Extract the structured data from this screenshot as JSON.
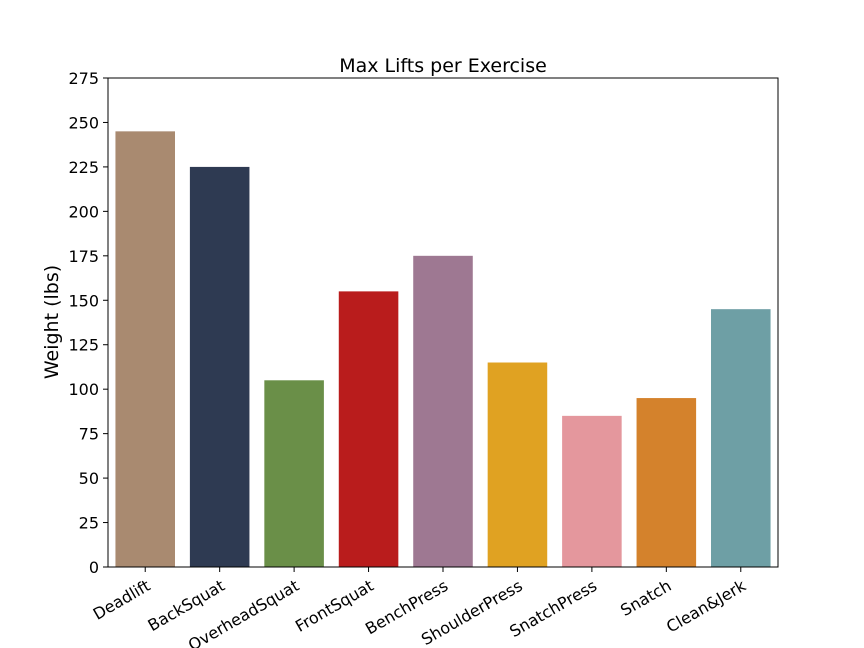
{
  "chart_data": {
    "type": "bar",
    "title": "Max Lifts per Exercise",
    "xlabel": "",
    "ylabel": "Weight (lbs)",
    "ylim": [
      0,
      275
    ],
    "yticks": [
      0,
      25,
      50,
      75,
      100,
      125,
      150,
      175,
      200,
      225,
      250,
      275
    ],
    "grid": false,
    "legend": "none",
    "categories": [
      "Deadlift",
      "BackSquat",
      "OverheadSquat",
      "FrontSquat",
      "BenchPress",
      "ShoulderPress",
      "SnatchPress",
      "Snatch",
      "Clean&Jerk"
    ],
    "values": [
      245,
      225,
      105,
      155,
      175,
      115,
      85,
      95,
      145
    ],
    "colors": [
      "#a98a70",
      "#2e3a52",
      "#6a8f48",
      "#b91c1c",
      "#9e7892",
      "#e0a222",
      "#e4979d",
      "#d4822c",
      "#6e9fa5"
    ]
  }
}
